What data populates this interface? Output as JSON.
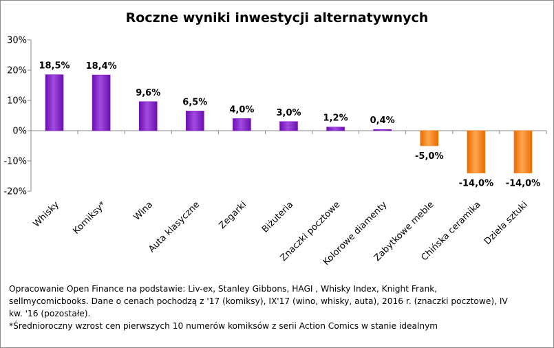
{
  "chart_data": {
    "type": "bar",
    "title": "Roczne wyniki inwestycji alternatywnych",
    "categories": [
      "Whisky",
      "Komiksy*",
      "Wina",
      "Auta klasyczne",
      "Zegarki",
      "Biżuteria",
      "Znaczki pocztowe",
      "Kolorowe diamenty",
      "Zabytkowe meble",
      "Chińska ceramika",
      "Dzieła sztuki"
    ],
    "values": [
      18.5,
      18.4,
      9.6,
      6.5,
      4.0,
      3.0,
      1.2,
      0.4,
      -5.0,
      -14.0,
      -14.0
    ],
    "data_labels": [
      "18,5%",
      "18,4%",
      "9,6%",
      "6,5%",
      "4,0%",
      "3,0%",
      "1,2%",
      "0,4%",
      "-5,0%",
      "-14,0%",
      "-14,0%"
    ],
    "y_ticks": [
      30,
      20,
      10,
      0,
      -10,
      -20
    ],
    "y_tick_labels": [
      "30%",
      "20%",
      "10%",
      "0%",
      "-10%",
      "-20%"
    ],
    "ylim": [
      -20,
      30
    ],
    "xlabel": "",
    "ylabel": "",
    "grid": false,
    "legend": "none",
    "colors": {
      "positive": "#7d16c4",
      "positive_light": "#a14be0",
      "negative": "#f47c0c",
      "negative_light": "#ffa64d"
    }
  },
  "footnote": {
    "lines": [
      "Opracowanie Open Finance na podstawie: Liv-ex, Stanley Gibbons, HAGI , Whisky Index, Knight Frank,",
      "sellmycomicbooks. Dane o cenach pochodzą z '17 (komiksy), IX'17 (wino, whisky, auta), 2016 r. (znaczki pocztowe), IV",
      "kw. '16 (pozostałe).",
      "*Średnioroczny wzrost cen pierwszych 10 numerów komiksów z serii Action Comics w stanie idealnym"
    ]
  }
}
